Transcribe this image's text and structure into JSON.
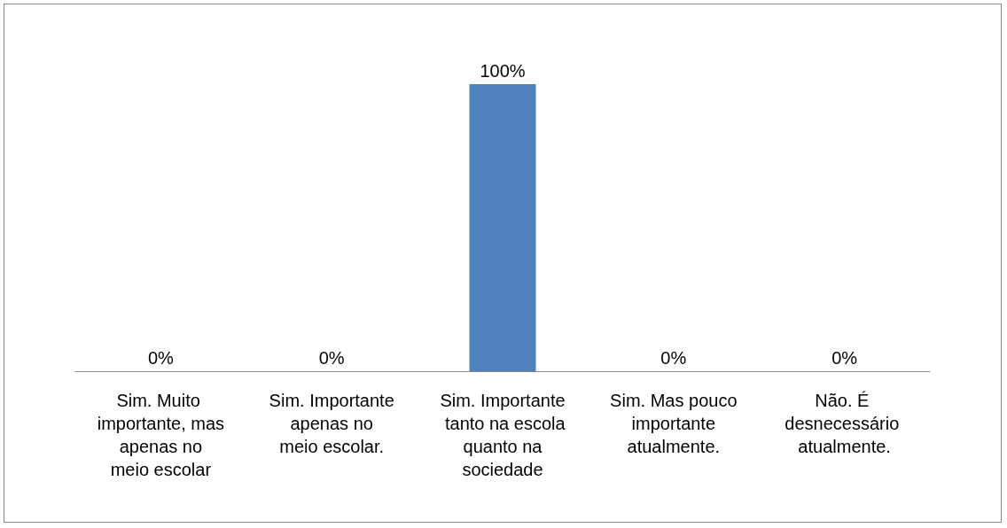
{
  "chart_data": {
    "type": "bar",
    "categories": [
      "Sim. Muito importante, mas apenas no meio escolar",
      "Sim. Importante apenas no meio escolar.",
      "Sim. Importante tanto na escola quanto na sociedade",
      "Sim. Mas pouco importante atualmente.",
      "Não. É desnecessário atualmente."
    ],
    "values": [
      0,
      0,
      100,
      0,
      0
    ],
    "value_labels": [
      "0%",
      "0%",
      "100%",
      "0%",
      "0%"
    ],
    "color": "#4f81bd",
    "grid": false
  }
}
